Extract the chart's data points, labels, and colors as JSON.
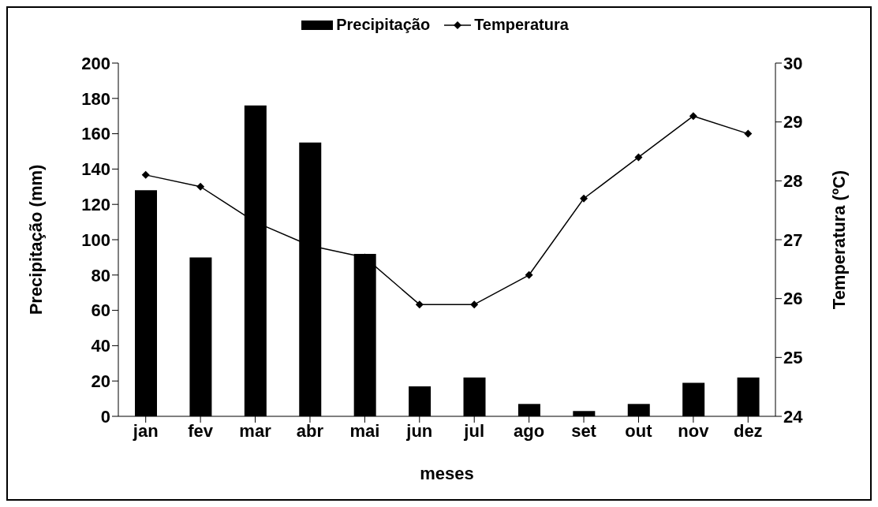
{
  "chart_data": {
    "type": "bar",
    "xlabel": "meses",
    "ylabel": "Precipitação (mm)",
    "y2label": "Temperatura (ºC)",
    "categories": [
      "jan",
      "fev",
      "mar",
      "abr",
      "mai",
      "jun",
      "jul",
      "ago",
      "set",
      "out",
      "nov",
      "dez"
    ],
    "series": [
      {
        "name": "Precipitação",
        "color": "#000000",
        "values": [
          128,
          90,
          176,
          155,
          92,
          17,
          22,
          7,
          3,
          7,
          19,
          22
        ]
      },
      {
        "name": "Temperatura",
        "type": "line",
        "axis": "y2",
        "color": "#000000",
        "values": [
          28.1,
          27.9,
          27.3,
          26.9,
          26.7,
          25.9,
          25.9,
          26.4,
          27.7,
          28.4,
          29.1,
          28.8
        ]
      }
    ],
    "ylim": [
      0,
      200
    ],
    "yticks": [
      0,
      20,
      40,
      60,
      80,
      100,
      120,
      140,
      160,
      180,
      200
    ],
    "y2lim": [
      24,
      30
    ],
    "y2ticks": [
      24,
      25,
      26,
      27,
      28,
      29,
      30
    ],
    "legend": "top",
    "marker": "diamond",
    "line_style": "solid",
    "grid": false
  }
}
